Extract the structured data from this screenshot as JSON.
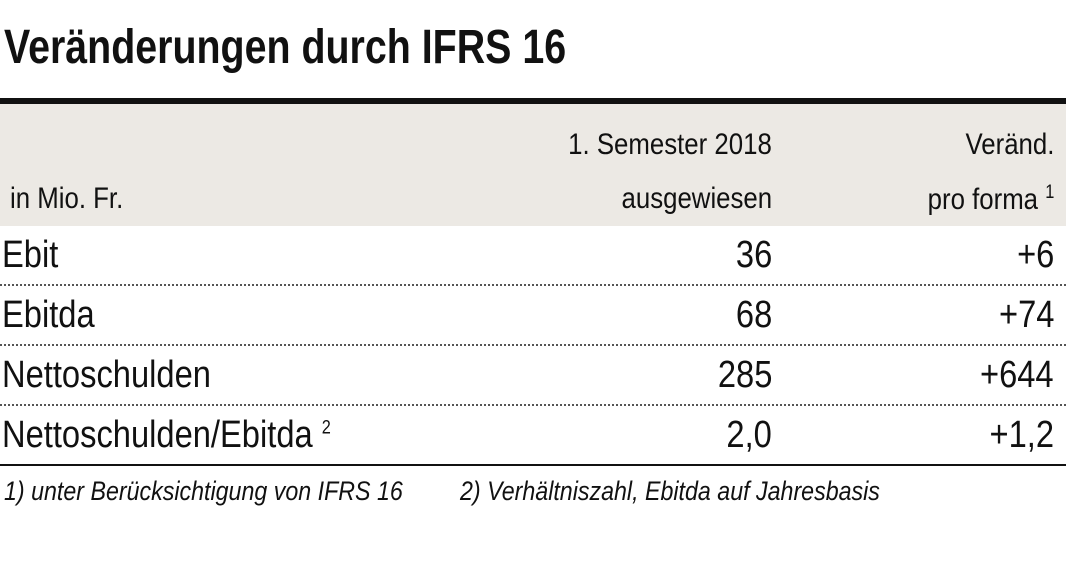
{
  "title": "Veränderungen durch IFRS 16",
  "table": {
    "header": {
      "unit": "in Mio. Fr.",
      "col1": [
        "1. Semester 2018",
        "ausgewiesen"
      ],
      "col2": [
        "Veränd.",
        "pro forma"
      ],
      "col2_note": "1"
    },
    "rows": [
      {
        "label": "Ebit",
        "values": [
          "36",
          "+6"
        ]
      },
      {
        "label": "Ebitda",
        "values": [
          "68",
          "+74"
        ]
      },
      {
        "label": "Nettoschulden",
        "values": [
          "285",
          "+644"
        ]
      },
      {
        "label": "Nettoschulden/Ebitda",
        "note": "2",
        "values": [
          "2,0",
          "+1,2"
        ]
      }
    ]
  },
  "footnotes": [
    "1) unter Berücksichtigung von IFRS 16",
    "2) Verhältniszahl, Ebitda auf Jahresbasis"
  ]
}
